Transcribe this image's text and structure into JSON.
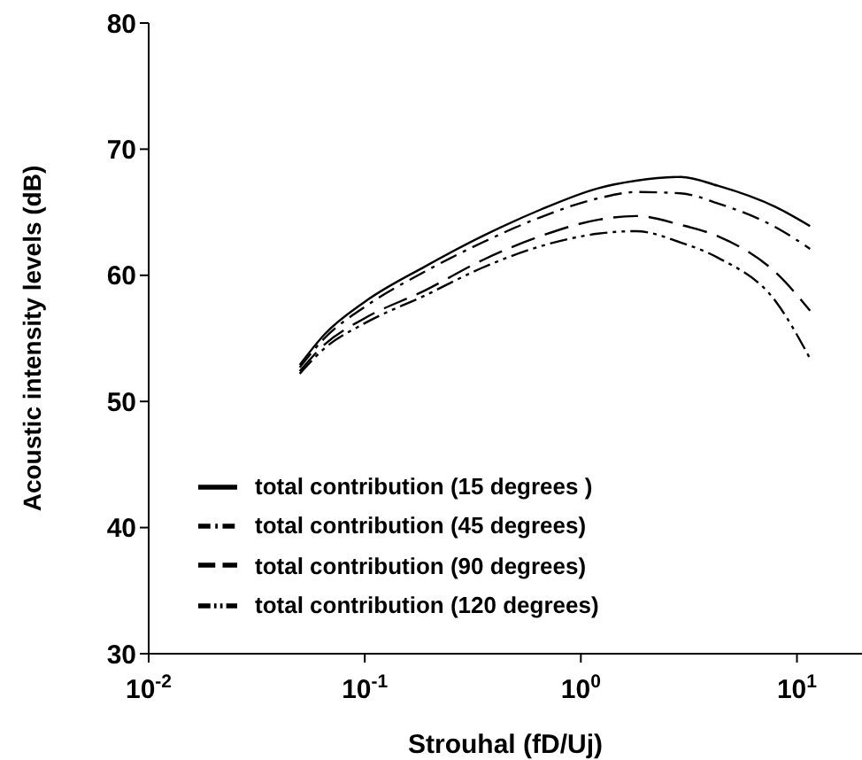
{
  "chart_data": {
    "type": "line",
    "xlabel": "Strouhal (fD/Uj)",
    "ylabel": "Acoustic intensity levels (dB)",
    "log": "x",
    "grid": false,
    "legend": "bottom",
    "marker": "none",
    "x": [
      0.05,
      0.065,
      0.1,
      0.19,
      0.35,
      0.65,
      1.2,
      1.8,
      2.9,
      4.3,
      8,
      11.5
    ],
    "xlim": [
      0.01,
      20
    ],
    "xticks": [
      {
        "value": 0.01,
        "label": "10$^{-2}$"
      },
      {
        "value": 0.1,
        "label": "10$^{-1}$"
      },
      {
        "value": 1,
        "label": "10$^{0}$"
      },
      {
        "value": 10,
        "label": "10$^{1}$"
      }
    ],
    "ylim": [
      30,
      80
    ],
    "yticks": [
      30,
      40,
      50,
      60,
      70,
      80
    ],
    "series": [
      {
        "name": "total contribution (15 degrees )",
        "color": "#000000",
        "line_style": "solid",
        "values": [
          52.9,
          55.3,
          57.9,
          60.7,
          63.1,
          65.2,
          66.9,
          67.5,
          67.8,
          67.1,
          65.4,
          63.9
        ]
      },
      {
        "name": "total contribution (45 degrees)",
        "color": "#000000",
        "line_style": "dashdot",
        "values": [
          52.7,
          55.0,
          57.5,
          60.3,
          62.6,
          64.6,
          66.1,
          66.6,
          66.5,
          65.7,
          63.8,
          62.1
        ]
      },
      {
        "name": "total contribution (90 degrees)",
        "color": "#000000",
        "line_style": "dashed",
        "values": [
          52.4,
          54.5,
          56.6,
          58.8,
          61.2,
          63.1,
          64.4,
          64.7,
          64.0,
          63.1,
          60.2,
          57.2
        ]
      },
      {
        "name": "total contribution (120 degrees)",
        "color": "#000000",
        "line_style": "dashdotdot",
        "values": [
          52.2,
          54.2,
          56.2,
          58.4,
          60.6,
          62.3,
          63.3,
          63.5,
          62.6,
          61.4,
          57.9,
          53.4
        ]
      }
    ]
  }
}
